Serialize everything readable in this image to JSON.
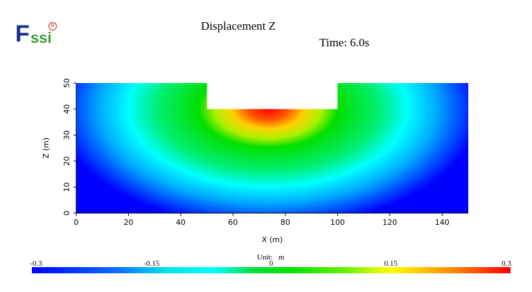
{
  "header": {
    "title": "Displacement Z",
    "time": "Time: 6.0s"
  },
  "colorbar": {
    "unit": "Unit:   m",
    "ticks": [
      "-0.3",
      "-0.15",
      "0",
      "0.15",
      "0.3"
    ]
  },
  "chart_data": {
    "type": "heatmap",
    "title": "Displacement Z",
    "xlabel": "X (m)",
    "ylabel": "Z (m)",
    "xlim": [
      0,
      150
    ],
    "ylim": [
      0,
      50
    ],
    "xticks": [
      "0",
      "20",
      "40",
      "60",
      "80",
      "100",
      "120",
      "140"
    ],
    "yticks": [
      "0",
      "10",
      "20",
      "30",
      "40",
      "50"
    ],
    "domain_outline": [
      [
        0,
        0
      ],
      [
        150,
        0
      ],
      [
        150,
        50
      ],
      [
        100,
        50
      ],
      [
        100,
        40
      ],
      [
        50,
        40
      ],
      [
        50,
        50
      ],
      [
        0,
        50
      ]
    ],
    "value_range": [
      -0.3,
      0.3
    ],
    "unit": "m",
    "max_value": {
      "x": 77,
      "z": 40,
      "value": 0.3
    }
  }
}
